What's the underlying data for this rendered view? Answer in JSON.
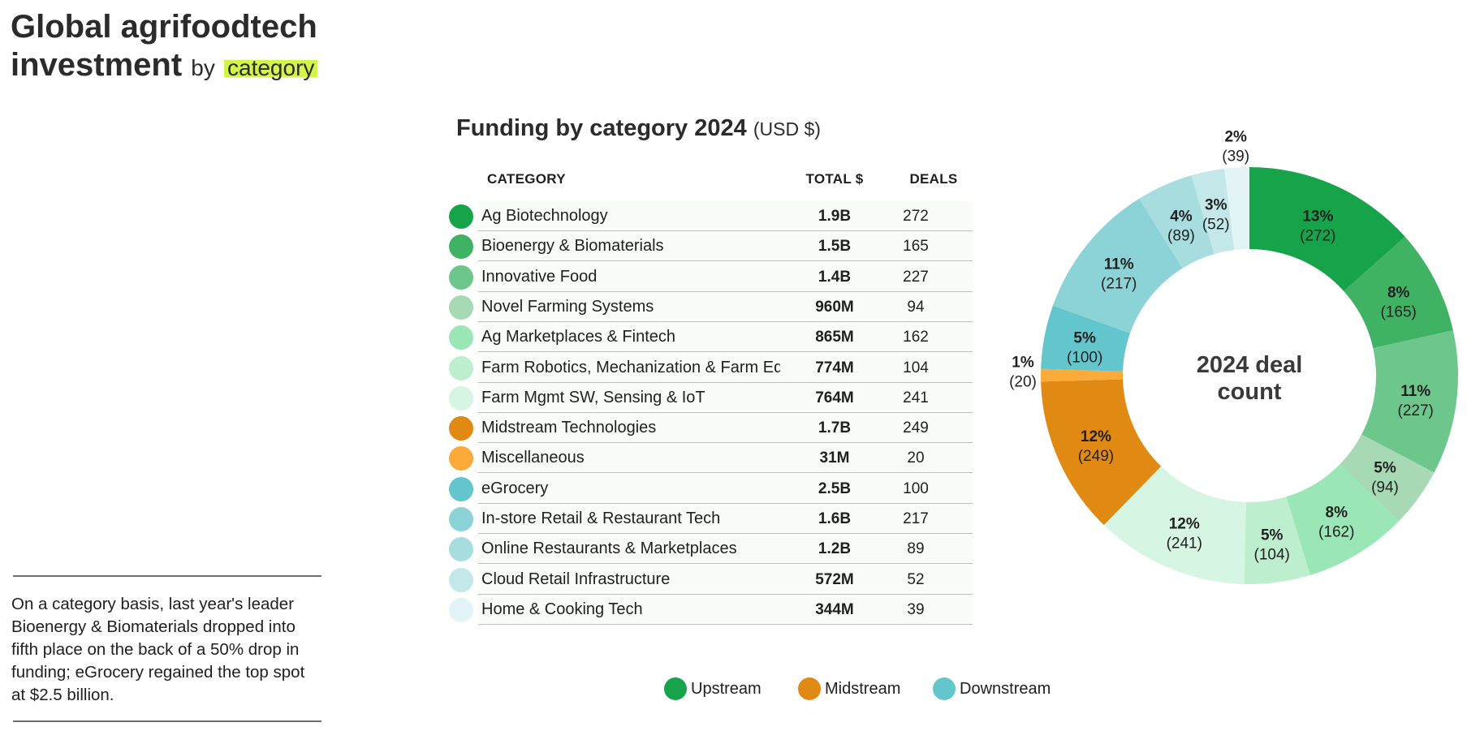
{
  "header": {
    "title_line1": "Global agrifoodtech",
    "title_line2": "investment",
    "title_by": "by",
    "title_highlight": "category"
  },
  "note": "On a category basis, last year's leader Bioenergy & Biomaterials dropped into fifth place on the back of a 50% drop in funding; eGrocery regained the top spot at $2.5 billion.",
  "table": {
    "title": "Funding by category 2024",
    "unit": "(USD $)",
    "columns": [
      "CATEGORY",
      "TOTAL $",
      "DEALS"
    ],
    "rows": [
      {
        "category": "Ag Biotechnology",
        "total": "1.9B",
        "deals": "272",
        "color": "#17a34a"
      },
      {
        "category": "Bioenergy & Biomaterials",
        "total": "1.5B",
        "deals": "165",
        "color": "#3fb264"
      },
      {
        "category": "Innovative Food",
        "total": "1.4B",
        "deals": "227",
        "color": "#6dc68c"
      },
      {
        "category": "Novel Farming Systems",
        "total": "960M",
        "deals": "94",
        "color": "#a6d9b4"
      },
      {
        "category": "Ag Marketplaces & Fintech",
        "total": "865M",
        "deals": "162",
        "color": "#9ae6b6"
      },
      {
        "category": "Farm Robotics, Mechanization & Farm Eq",
        "total": "774M",
        "deals": "104",
        "color": "#bdeece"
      },
      {
        "category": "Farm Mgmt SW, Sensing & IoT",
        "total": "764M",
        "deals": "241",
        "color": "#d6f5e2"
      },
      {
        "category": "Midstream Technologies",
        "total": "1.7B",
        "deals": "249",
        "color": "#e08a14"
      },
      {
        "category": "Miscellaneous",
        "total": "31M",
        "deals": "20",
        "color": "#fbab3a"
      },
      {
        "category": "eGrocery",
        "total": "2.5B",
        "deals": "100",
        "color": "#63c6cc"
      },
      {
        "category": "In-store Retail & Restaurant Tech",
        "total": "1.6B",
        "deals": "217",
        "color": "#8bd3d6"
      },
      {
        "category": "Online Restaurants & Marketplaces",
        "total": "1.2B",
        "deals": "89",
        "color": "#a8dde0"
      },
      {
        "category": "Cloud Retail Infrastructure",
        "total": "572M",
        "deals": "52",
        "color": "#c4e8ea"
      },
      {
        "category": "Home & Cooking Tech",
        "total": "344M",
        "deals": "39",
        "color": "#e2f4f5"
      }
    ]
  },
  "legend": [
    {
      "label": "Upstream",
      "color": "#17a34a"
    },
    {
      "label": "Midstream",
      "color": "#e08a14"
    },
    {
      "label": "Downstream",
      "color": "#63c6cc"
    }
  ],
  "chart_data": {
    "type": "pie",
    "title": "2024 deal count",
    "center_line1": "2024 deal",
    "center_line2": "count",
    "slices": [
      {
        "label": "Ag Biotechnology",
        "value": 272,
        "pct": "13%",
        "color": "#17a34a"
      },
      {
        "label": "Bioenergy & Biomaterials",
        "value": 165,
        "pct": "8%",
        "color": "#3fb264"
      },
      {
        "label": "Innovative Food",
        "value": 227,
        "pct": "11%",
        "color": "#6dc68c"
      },
      {
        "label": "Novel Farming Systems",
        "value": 94,
        "pct": "5%",
        "color": "#a6d9b4"
      },
      {
        "label": "Ag Marketplaces & Fintech",
        "value": 162,
        "pct": "8%",
        "color": "#9ae6b6"
      },
      {
        "label": "Farm Robotics, Mechanization & Farm Eq",
        "value": 104,
        "pct": "5%",
        "color": "#bdeece"
      },
      {
        "label": "Farm Mgmt SW, Sensing & IoT",
        "value": 241,
        "pct": "12%",
        "color": "#d6f5e2"
      },
      {
        "label": "Midstream Technologies",
        "value": 249,
        "pct": "12%",
        "color": "#e08a14"
      },
      {
        "label": "Miscellaneous",
        "value": 20,
        "pct": "1%",
        "color": "#fbab3a"
      },
      {
        "label": "eGrocery",
        "value": 100,
        "pct": "5%",
        "color": "#63c6cc"
      },
      {
        "label": "In-store Retail & Restaurant Tech",
        "value": 217,
        "pct": "11%",
        "color": "#8bd3d6"
      },
      {
        "label": "Online Restaurants & Marketplaces",
        "value": 89,
        "pct": "4%",
        "color": "#a8dde0"
      },
      {
        "label": "Cloud Retail Infrastructure",
        "value": 52,
        "pct": "3%",
        "color": "#c4e8ea"
      },
      {
        "label": "Home & Cooking Tech",
        "value": 39,
        "pct": "2%",
        "color": "#e2f4f5"
      }
    ]
  }
}
